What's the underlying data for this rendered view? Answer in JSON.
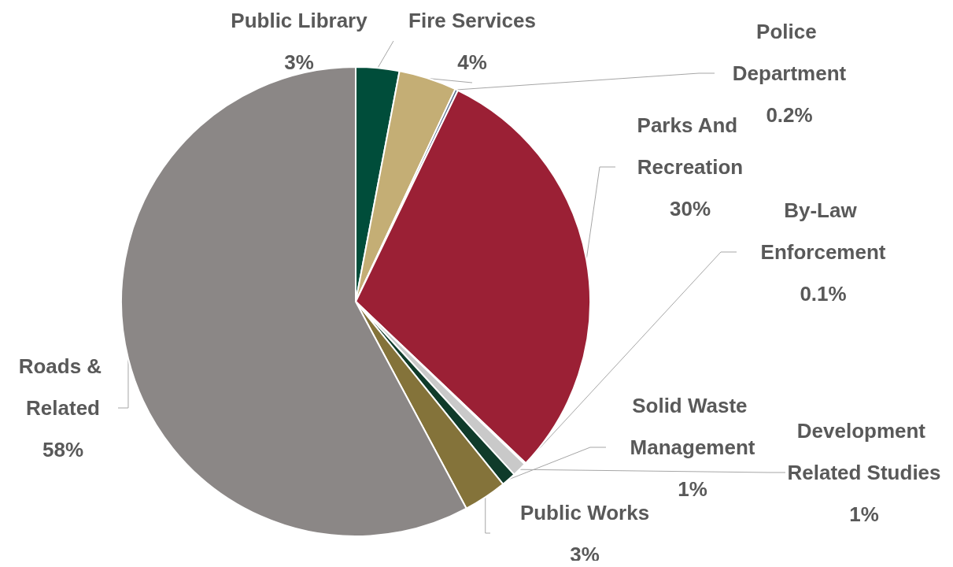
{
  "chart_data": {
    "type": "pie",
    "categories": [
      "Public Library",
      "Fire Services",
      "Police Department",
      "Parks And Recreation",
      "By-Law Enforcement",
      "Development Related Studies",
      "Solid Waste Management",
      "Public Works",
      "Roads & Related"
    ],
    "values": [
      3,
      4,
      0.2,
      30,
      0.1,
      1,
      1,
      3,
      58
    ],
    "value_labels": [
      "3%",
      "4%",
      "0.2%",
      "30%",
      "0.1%",
      "1%",
      "1%",
      "3%",
      "58%"
    ],
    "colors": [
      "#004d3a",
      "#c4ae75",
      "#5a6e8c",
      "#9b2035",
      "#3d6b5a",
      "#c9c9c9",
      "#0f3b2a",
      "#84733a",
      "#8b8786"
    ],
    "legend": false
  }
}
